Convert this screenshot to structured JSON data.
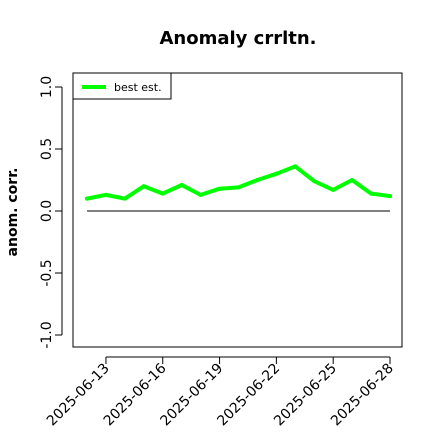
{
  "chart_data": {
    "type": "line",
    "title": "Anomaly crrltn.",
    "xlabel": "",
    "ylabel": "anom. corr.",
    "ylim": [
      -1.0,
      1.0
    ],
    "yticks": [
      "-1.0",
      "-0.5",
      "0.0",
      "0.5",
      "1.0"
    ],
    "xtick_labels": [
      "2025-06-13",
      "2025-06-16",
      "2025-06-19",
      "2025-06-22",
      "2025-06-25",
      "2025-06-28"
    ],
    "x": [
      "2025-06-12",
      "2025-06-13",
      "2025-06-14",
      "2025-06-15",
      "2025-06-16",
      "2025-06-17",
      "2025-06-18",
      "2025-06-19",
      "2025-06-20",
      "2025-06-21",
      "2025-06-22",
      "2025-06-23",
      "2025-06-24",
      "2025-06-25",
      "2025-06-26",
      "2025-06-27",
      "2025-06-28"
    ],
    "series": [
      {
        "name": "best est.",
        "color": "#00ff00",
        "values": [
          0.1,
          0.13,
          0.1,
          0.2,
          0.14,
          0.21,
          0.13,
          0.18,
          0.19,
          0.25,
          0.3,
          0.36,
          0.24,
          0.17,
          0.25,
          0.14,
          0.12
        ]
      }
    ],
    "reference_line": {
      "y": 0.0,
      "color": "#000000"
    },
    "legend": {
      "position": "top-left",
      "entries": [
        "best est."
      ]
    },
    "grid": false
  }
}
